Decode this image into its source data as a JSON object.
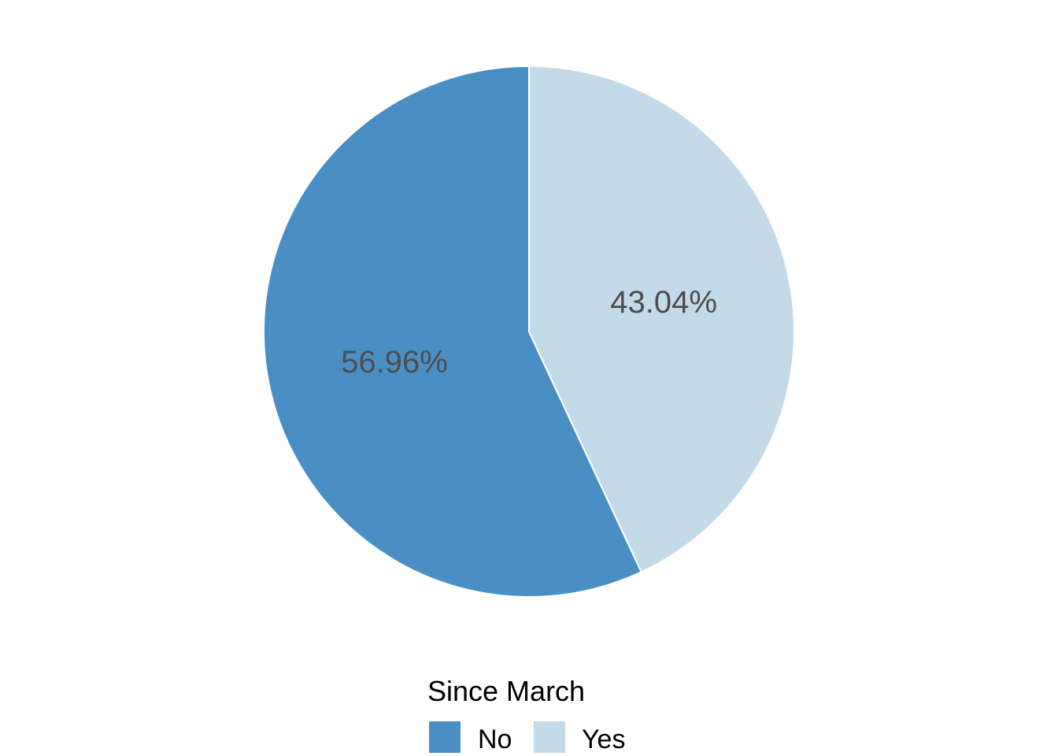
{
  "chart_data": {
    "type": "pie",
    "slices": [
      {
        "label": "No",
        "value": 56.96,
        "display": "56.96%",
        "color": "#4A8FC4"
      },
      {
        "label": "Yes",
        "value": 43.04,
        "display": "43.04%",
        "color": "#C3DAE8"
      }
    ],
    "legend": {
      "title": "Since March",
      "position": "bottom",
      "items": [
        "No",
        "Yes"
      ]
    },
    "title": "",
    "start": "top",
    "direction": "counterclockwise"
  }
}
